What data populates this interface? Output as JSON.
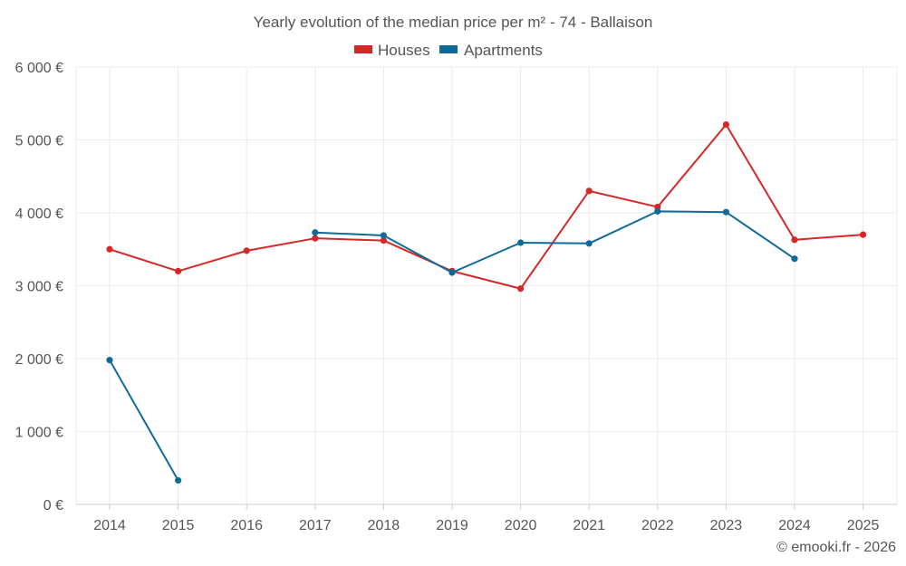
{
  "chart_data": {
    "type": "line",
    "title": "Yearly evolution of the median price per m² - 74 - Ballaison",
    "categories": [
      "2014",
      "2015",
      "2016",
      "2017",
      "2018",
      "2019",
      "2020",
      "2021",
      "2022",
      "2023",
      "2024",
      "2025"
    ],
    "y_tick_values": [
      0,
      1000,
      2000,
      3000,
      4000,
      5000,
      6000
    ],
    "y_tick_labels": [
      "0 €",
      "1 000 €",
      "2 000 €",
      "3 000 €",
      "4 000 €",
      "5 000 €",
      "6 000 €"
    ],
    "ylim": [
      0,
      6000
    ],
    "grid": true,
    "legend_position": "top-center",
    "series": [
      {
        "name": "Houses",
        "color": "#d62728",
        "values": [
          3500,
          3200,
          3480,
          3650,
          3620,
          3200,
          2960,
          4300,
          4080,
          5210,
          3630,
          3700
        ]
      },
      {
        "name": "Apartments",
        "color": "#0f6a9a",
        "segments": [
          {
            "values": [
              1980,
              330
            ],
            "start_index": 0
          },
          {
            "values": [
              3730,
              3690,
              3180,
              3590,
              3580,
              4020,
              4010,
              3370
            ],
            "start_index": 3
          }
        ]
      }
    ]
  },
  "credit": "© emooki.fr - 2026"
}
